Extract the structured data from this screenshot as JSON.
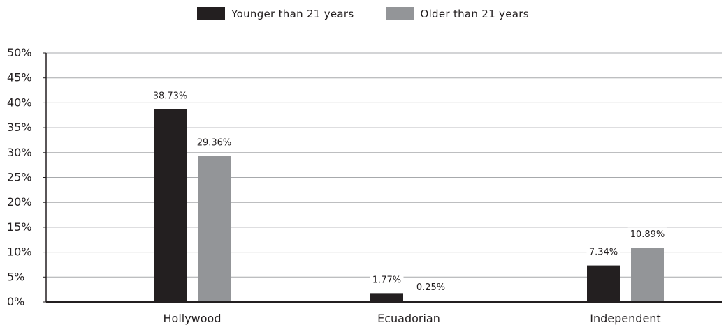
{
  "chart_data": {
    "type": "bar",
    "categories": [
      "Hollywood",
      "Ecuadorian",
      "Independent"
    ],
    "series": [
      {
        "name": "Younger than 21 years",
        "values": [
          38.73,
          1.77,
          7.34
        ],
        "labels": [
          "38.73%",
          "1.77%",
          "7.34%"
        ],
        "color": "#231f20"
      },
      {
        "name": "Older than 21 years",
        "values": [
          29.36,
          0.25,
          10.89
        ],
        "labels": [
          "29.36%",
          "0.25%",
          "10.89%"
        ],
        "color": "#939598"
      }
    ],
    "yticks": [
      "0%",
      "5%",
      "10%",
      "15%",
      "20%",
      "25%",
      "30%",
      "35%",
      "40%",
      "45%",
      "50%"
    ],
    "ylim": [
      0,
      50
    ],
    "grid": true,
    "legend_position": "top-center",
    "axis_color": "#231f20",
    "grid_color": "#a7a9ac"
  }
}
